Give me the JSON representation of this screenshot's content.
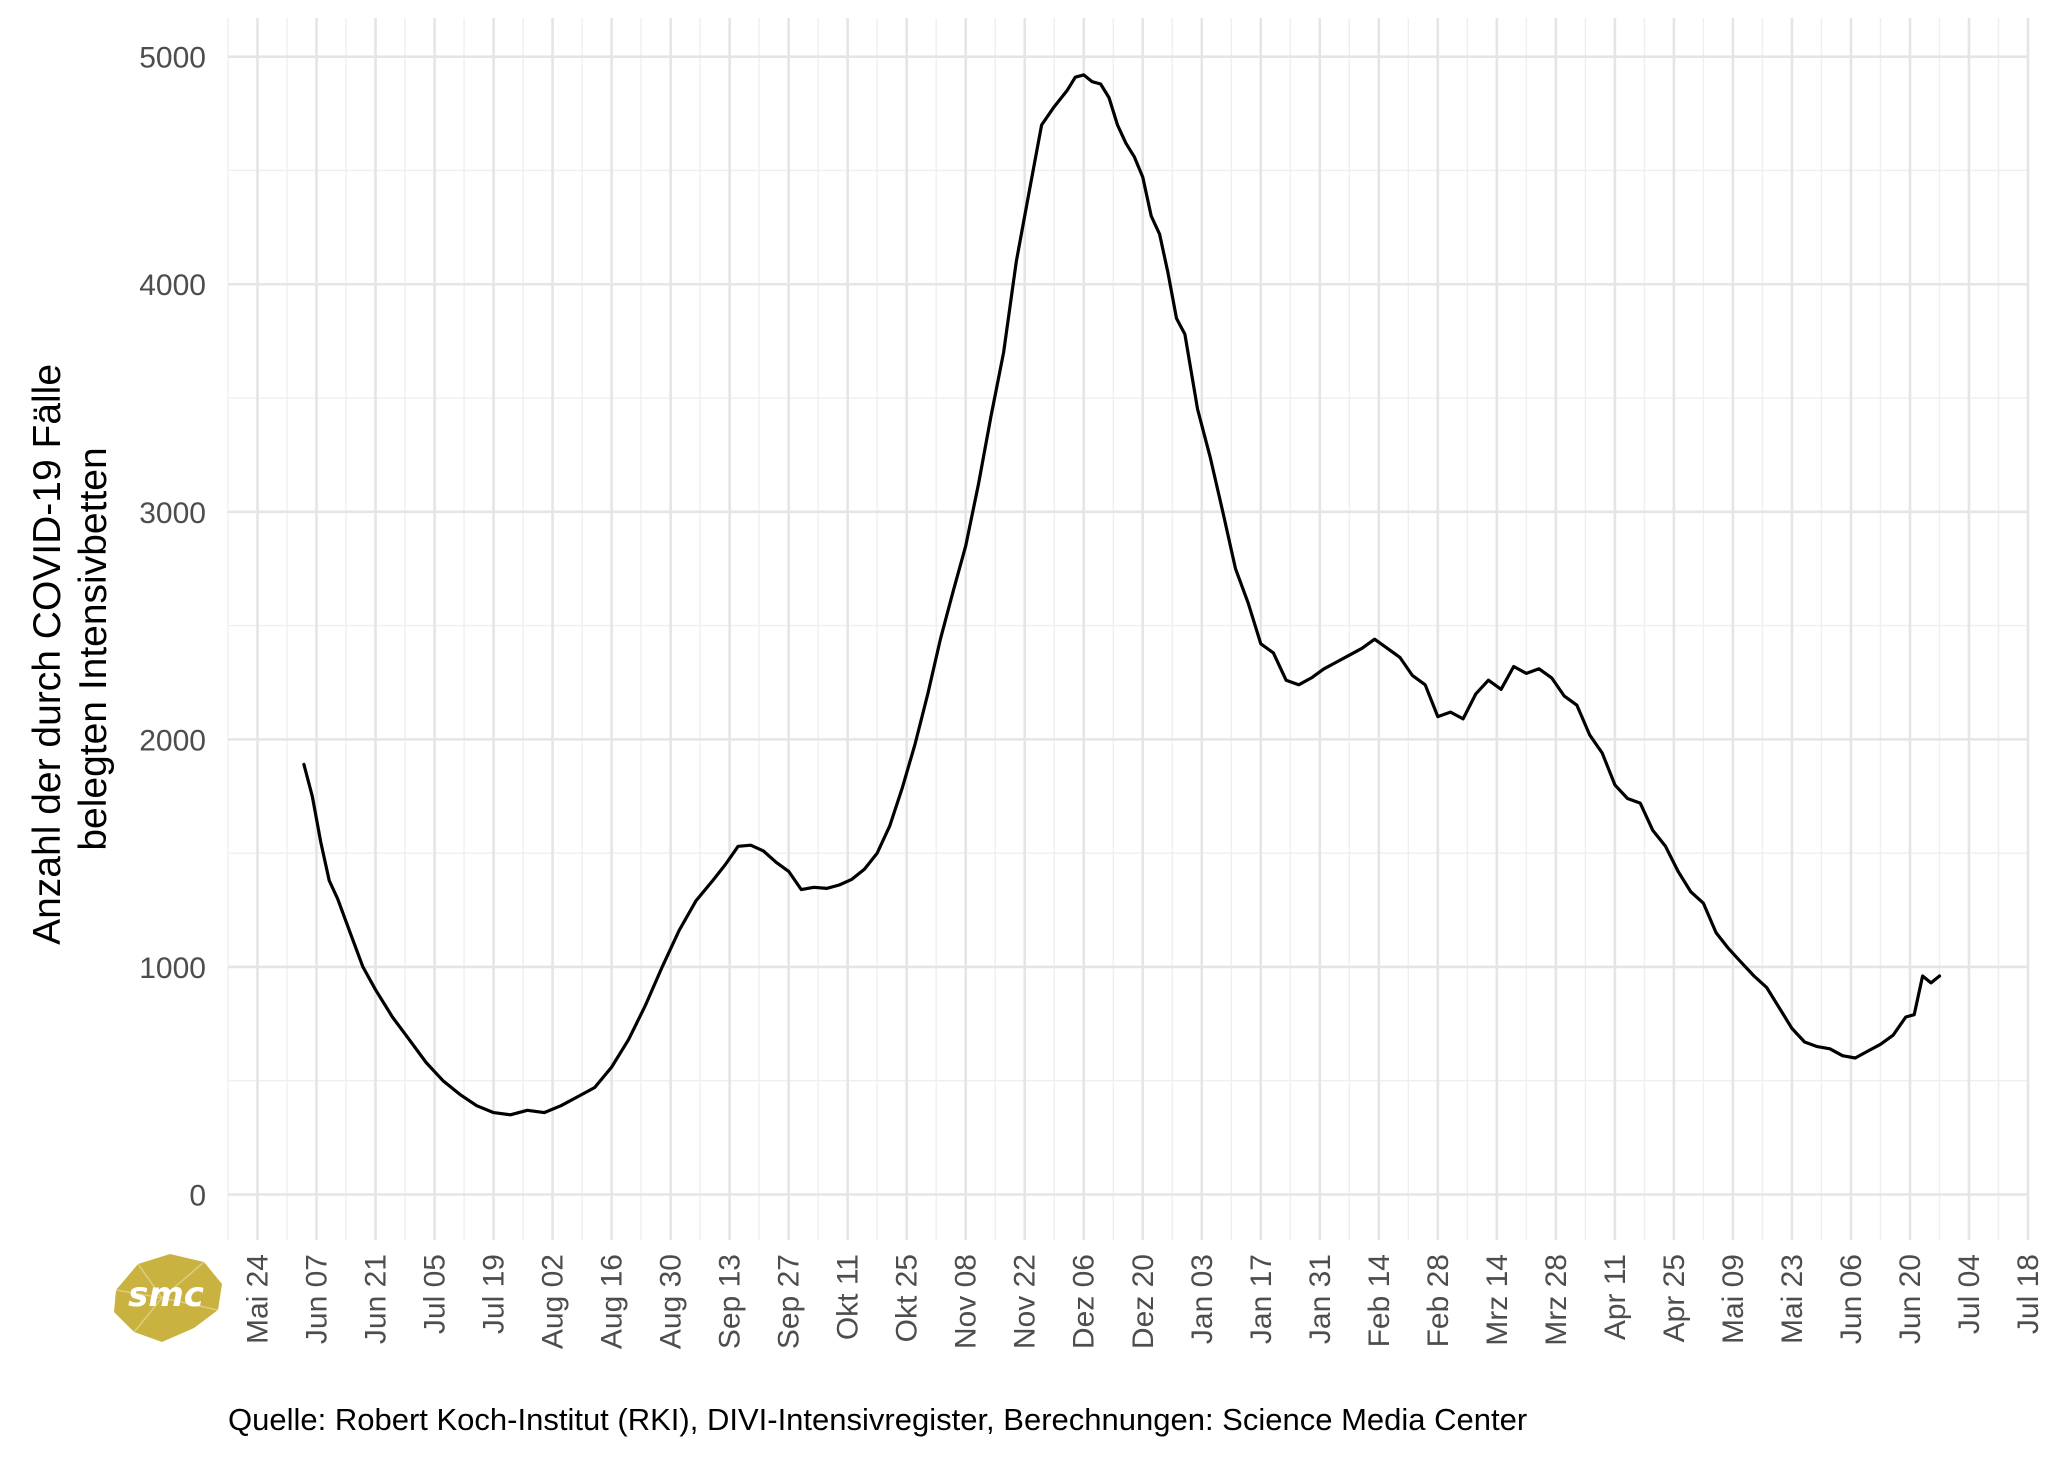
{
  "chart_data": {
    "type": "line",
    "title": "",
    "xlabel": "",
    "ylabel": [
      "Anzahl der durch COVID-19 Fälle",
      "belegten Intensivbetten"
    ],
    "ylim": [
      -200,
      5170
    ],
    "y_ticks": [
      0,
      1000,
      2000,
      3000,
      4000,
      5000
    ],
    "x_ticks": [
      "Mai 24",
      "Jun 07",
      "Jun 21",
      "Jul 05",
      "Jul 19",
      "Aug 02",
      "Aug 16",
      "Aug 30",
      "Sep 13",
      "Sep 27",
      "Okt 11",
      "Okt 25",
      "Nov 08",
      "Nov 22",
      "Dez 06",
      "Dez 20",
      "Jan 03",
      "Jan 17",
      "Jan 31",
      "Feb 14",
      "Feb 28",
      "Mrz 14",
      "Mrz 28",
      "Apr 11",
      "Apr 25",
      "Mai 09",
      "Mai 23",
      "Jun 06",
      "Jun 20",
      "Jul 04",
      "Jul 18"
    ],
    "x_tick_dates": [
      "2020-05-24",
      "2020-06-07",
      "2020-06-21",
      "2020-07-05",
      "2020-07-19",
      "2020-08-02",
      "2020-08-16",
      "2020-08-30",
      "2020-09-13",
      "2020-09-27",
      "2020-10-11",
      "2020-10-25",
      "2020-11-08",
      "2020-11-22",
      "2020-12-06",
      "2020-12-20",
      "2021-01-03",
      "2021-01-17",
      "2021-01-31",
      "2021-02-14",
      "2021-02-28",
      "2021-03-14",
      "2021-03-28",
      "2021-04-11",
      "2021-04-25",
      "2021-05-09",
      "2021-05-23",
      "2021-06-06",
      "2021-06-20",
      "2021-07-04",
      "2021-07-18"
    ],
    "xlim": [
      "2020-05-17",
      "2021-07-18"
    ],
    "grid": true,
    "legend": "none",
    "line_color": "#000000",
    "series": [
      {
        "x": [
          "2020-06-04",
          "2020-06-06",
          "2020-06-08",
          "2020-06-10",
          "2020-06-12",
          "2020-06-15",
          "2020-06-18",
          "2020-06-21",
          "2020-06-25",
          "2020-06-29",
          "2020-07-03",
          "2020-07-07",
          "2020-07-11",
          "2020-07-15",
          "2020-07-19",
          "2020-07-23",
          "2020-07-27",
          "2020-07-31",
          "2020-08-04",
          "2020-08-08",
          "2020-08-12",
          "2020-08-16",
          "2020-08-20",
          "2020-08-24",
          "2020-08-28",
          "2020-09-01",
          "2020-09-05",
          "2020-09-09",
          "2020-09-12",
          "2020-09-15",
          "2020-09-18",
          "2020-09-21",
          "2020-09-24",
          "2020-09-27",
          "2020-09-30",
          "2020-10-03",
          "2020-10-06",
          "2020-10-09",
          "2020-10-12",
          "2020-10-15",
          "2020-10-18",
          "2020-10-21",
          "2020-10-24",
          "2020-10-27",
          "2020-10-30",
          "2020-11-02",
          "2020-11-05",
          "2020-11-08",
          "2020-11-11",
          "2020-11-14",
          "2020-11-17",
          "2020-11-20",
          "2020-11-23",
          "2020-11-26",
          "2020-11-29",
          "2020-12-02",
          "2020-12-04",
          "2020-12-06",
          "2020-12-08",
          "2020-12-10",
          "2020-12-12",
          "2020-12-14",
          "2020-12-16",
          "2020-12-18",
          "2020-12-20",
          "2020-12-22",
          "2020-12-24",
          "2020-12-26",
          "2020-12-28",
          "2020-12-30",
          "2021-01-02",
          "2021-01-05",
          "2021-01-08",
          "2021-01-11",
          "2021-01-14",
          "2021-01-17",
          "2021-01-20",
          "2021-01-23",
          "2021-01-26",
          "2021-01-29",
          "2021-02-01",
          "2021-02-04",
          "2021-02-07",
          "2021-02-10",
          "2021-02-13",
          "2021-02-16",
          "2021-02-19",
          "2021-02-22",
          "2021-02-25",
          "2021-02-28",
          "2021-03-03",
          "2021-03-06",
          "2021-03-09",
          "2021-03-12",
          "2021-03-15",
          "2021-03-18",
          "2021-03-21",
          "2021-03-24",
          "2021-03-27",
          "2021-03-30",
          "2021-04-02",
          "2021-04-05",
          "2021-04-08",
          "2021-04-11",
          "2021-04-14",
          "2021-04-17",
          "2021-04-20",
          "2021-04-23",
          "2021-04-26",
          "2021-04-29",
          "2021-05-02",
          "2021-05-05",
          "2021-05-08",
          "2021-05-11",
          "2021-05-14",
          "2021-05-17",
          "2021-05-20",
          "2021-05-23",
          "2021-05-26",
          "2021-05-29",
          "2021-06-01",
          "2021-06-04",
          "2021-06-07",
          "2021-06-10",
          "2021-06-13",
          "2021-06-16",
          "2021-06-19",
          "2021-06-21",
          "2021-06-23",
          "2021-06-25",
          "2021-06-27"
        ],
        "values": [
          1890,
          1750,
          1550,
          1380,
          1300,
          1150,
          1000,
          900,
          780,
          680,
          580,
          500,
          440,
          390,
          360,
          350,
          370,
          360,
          390,
          430,
          470,
          560,
          680,
          830,
          1000,
          1160,
          1290,
          1380,
          1450,
          1530,
          1535,
          1510,
          1460,
          1420,
          1340,
          1350,
          1345,
          1360,
          1385,
          1430,
          1500,
          1620,
          1790,
          1980,
          2200,
          2440,
          2650,
          2850,
          3120,
          3420,
          3700,
          4100,
          4400,
          4700,
          4780,
          4850,
          4910,
          4920,
          4890,
          4880,
          4820,
          4700,
          4620,
          4560,
          4470,
          4300,
          4220,
          4050,
          3850,
          3780,
          3450,
          3240,
          3000,
          2750,
          2600,
          2420,
          2380,
          2260,
          2240,
          2270,
          2310,
          2340,
          2370,
          2400,
          2440,
          2400,
          2360,
          2280,
          2240,
          2100,
          2120,
          2090,
          2200,
          2260,
          2220,
          2320,
          2290,
          2310,
          2270,
          2190,
          2150,
          2020,
          1940,
          1800,
          1740,
          1720,
          1600,
          1530,
          1420,
          1330,
          1280,
          1150,
          1080,
          1020,
          960,
          910,
          820,
          730,
          670,
          650,
          640,
          610,
          600,
          630,
          660,
          700,
          780,
          790,
          960,
          930,
          960
        ]
      }
    ]
  },
  "source": "Quelle: Robert Koch-Institut (RKI), DIVI-Intensivregister, Berechnungen: Science Media Center",
  "logo": {
    "text": "smc",
    "color": "#c9b23f"
  }
}
